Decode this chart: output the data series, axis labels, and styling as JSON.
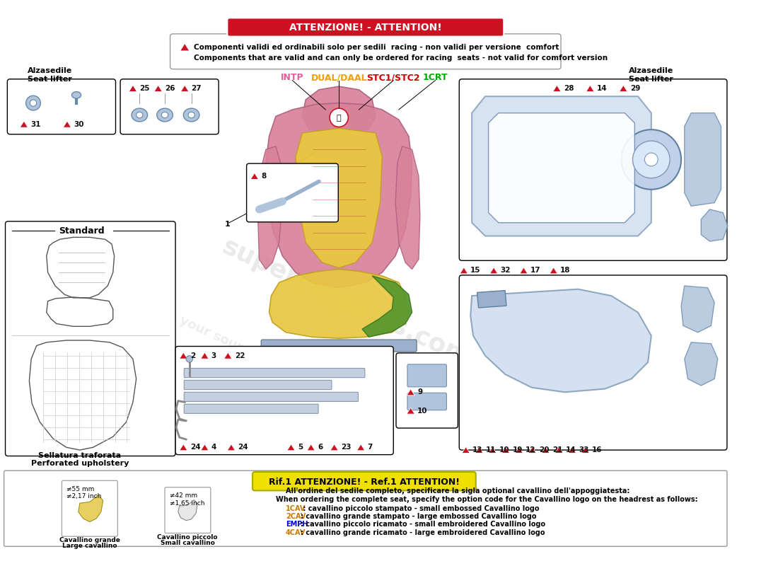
{
  "title_attention": "ATTENZIONE! - ATTENTION!",
  "warning_text1": "Componenti validi ed ordinabili solo per sedili  racing - non validi per versione  comfort",
  "warning_text2": "Components that are valid and can only be ordered for racing  seats - not valid for comfort version",
  "ref_attention": "Rif.1 ATTENZIONE! - Ref.1 ATTENTION!",
  "bottom_text1": "All'ordine del sedile completo, specificare la sigla optional cavallino dell'appoggiatesta:",
  "bottom_text2": "When ordering the complete seat, specify the option code for the Cavallino logo on the headrest as follows:",
  "bottom_line1_pre": "1CAV",
  "bottom_line1_post": " : cavallino piccolo stampato - small embossed Cavallino logo",
  "bottom_line2_pre": "2CAV",
  "bottom_line2_post": ": cavallino grande stampato - large embossed Cavallino logo",
  "bottom_line3_pre": "EMPH",
  "bottom_line3_post": ": cavallino piccolo ricamato - small embroidered Cavallino logo",
  "bottom_line4_pre": "4CAV",
  "bottom_line4_post": ": cavallino grande ricamato - large embroidered Cavallino logo",
  "legend_intp": "INTP",
  "legend_dual": "DUAL/DAAL",
  "legend_stc": "STC1/STC2",
  "legend_1crt": "1CRT",
  "seat_label_left": "Alzasedile\nSeat lifter",
  "seat_label_right": "Alzasedile\nSeat lifter",
  "standard_label": "Standard",
  "sellatura_label1": "Sellatura traforata",
  "sellatura_label2": "Perforated upholstery",
  "cavallino_grande_label1": "Cavallino grande",
  "cavallino_grande_label2": "Large cavallino",
  "cavallino_piccolo_label1": "Cavallino piccolo",
  "cavallino_piccolo_label2": "Small cavallino",
  "mm55": "≠55 mm\n≠2,17 inch",
  "mm42": "≠42 mm\n≠1,65 inch",
  "bg_color": "#ffffff",
  "attention_bg": "#cc1122",
  "ref_attention_bg": "#f0e000",
  "intp_color": "#e060a0",
  "dual_color": "#f0a000",
  "stc_color": "#cc0000",
  "crt_color": "#00aa00",
  "cav_color": "#cc7700",
  "emph_color": "#0000cc",
  "pink_color": "#d8829a",
  "yellow_color": "#e8c840",
  "green_color": "#5a9830",
  "blue_light": "#b0c4dc",
  "blue_frame": "#9ab0cc"
}
